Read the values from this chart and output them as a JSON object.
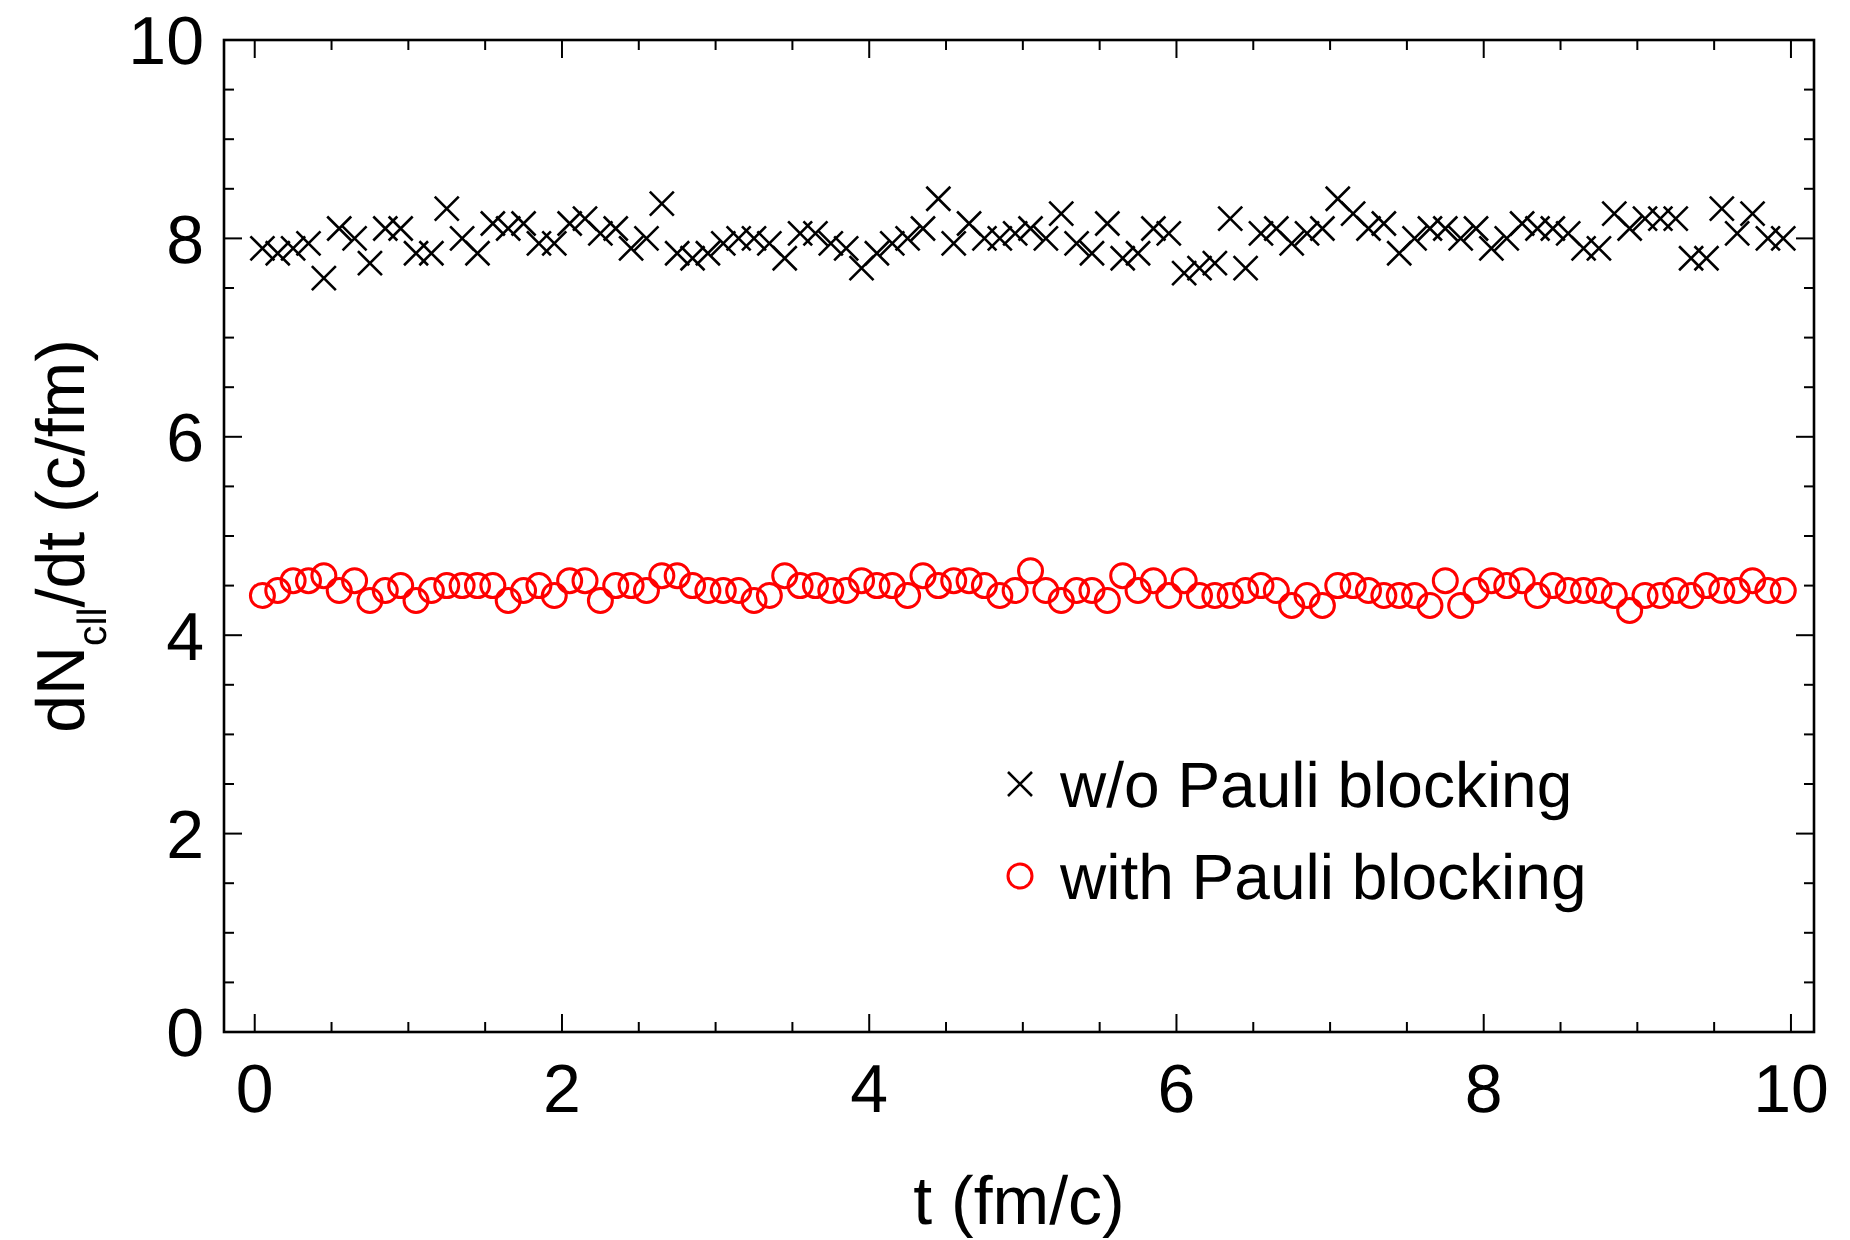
{
  "chart_data": {
    "type": "scatter",
    "xlabel": "t (fm/c)",
    "ylabel": "dN$_{cll}$/dt (c/fm)",
    "x": [
      0.05,
      0.15,
      0.25,
      0.35,
      0.45,
      0.55,
      0.65,
      0.75,
      0.85,
      0.95,
      1.05,
      1.15,
      1.25,
      1.35,
      1.45,
      1.55,
      1.65,
      1.75,
      1.85,
      1.95,
      2.05,
      2.15,
      2.25,
      2.35,
      2.45,
      2.55,
      2.65,
      2.75,
      2.85,
      2.95,
      3.05,
      3.15,
      3.25,
      3.35,
      3.45,
      3.55,
      3.65,
      3.75,
      3.85,
      3.95,
      4.05,
      4.15,
      4.25,
      4.35,
      4.45,
      4.55,
      4.65,
      4.75,
      4.85,
      4.95,
      5.05,
      5.15,
      5.25,
      5.35,
      5.45,
      5.55,
      5.65,
      5.75,
      5.85,
      5.95,
      6.05,
      6.15,
      6.25,
      6.35,
      6.45,
      6.55,
      6.65,
      6.75,
      6.85,
      6.95,
      7.05,
      7.15,
      7.25,
      7.35,
      7.45,
      7.55,
      7.65,
      7.75,
      7.85,
      7.95,
      8.05,
      8.15,
      8.25,
      8.35,
      8.45,
      8.55,
      8.65,
      8.75,
      8.85,
      8.95,
      9.05,
      9.15,
      9.25,
      9.35,
      9.45,
      9.55,
      9.65,
      9.75,
      9.85,
      9.95
    ],
    "series": [
      {
        "name": "w/o Pauli blocking",
        "color": "#000000",
        "marker": "cross",
        "values": [
          7.9,
          7.85,
          7.9,
          7.95,
          7.6,
          8.1,
          8.0,
          7.75,
          8.1,
          8.1,
          7.85,
          7.85,
          8.3,
          8.0,
          7.85,
          8.15,
          8.1,
          8.15,
          7.95,
          7.95,
          8.15,
          8.2,
          8.05,
          8.1,
          7.9,
          8.0,
          8.35,
          7.85,
          7.8,
          7.85,
          7.95,
          8.0,
          8.0,
          7.95,
          7.8,
          8.05,
          8.05,
          7.95,
          7.9,
          7.7,
          7.85,
          7.95,
          8.0,
          8.1,
          8.4,
          7.95,
          8.15,
          8.0,
          8.0,
          8.05,
          8.1,
          8.0,
          8.25,
          7.95,
          7.85,
          8.15,
          7.8,
          7.85,
          8.1,
          8.05,
          7.65,
          7.7,
          7.75,
          8.2,
          7.7,
          8.05,
          8.1,
          7.95,
          8.05,
          8.1,
          8.4,
          8.25,
          8.1,
          8.15,
          7.85,
          8.0,
          8.1,
          8.1,
          8.0,
          8.1,
          7.9,
          8.0,
          8.15,
          8.1,
          8.1,
          8.05,
          7.9,
          7.9,
          8.25,
          8.1,
          8.2,
          8.2,
          8.2,
          7.8,
          7.8,
          8.3,
          8.05,
          8.25,
          8.0,
          8.0
        ]
      },
      {
        "name": "with Pauli blocking",
        "color": "#ff0000",
        "marker": "circle",
        "values": [
          4.4,
          4.45,
          4.55,
          4.55,
          4.6,
          4.45,
          4.55,
          4.35,
          4.45,
          4.5,
          4.35,
          4.45,
          4.5,
          4.5,
          4.5,
          4.5,
          4.35,
          4.45,
          4.5,
          4.4,
          4.55,
          4.55,
          4.35,
          4.5,
          4.5,
          4.45,
          4.6,
          4.6,
          4.5,
          4.45,
          4.45,
          4.45,
          4.35,
          4.4,
          4.6,
          4.5,
          4.5,
          4.45,
          4.45,
          4.55,
          4.5,
          4.5,
          4.4,
          4.6,
          4.5,
          4.55,
          4.55,
          4.5,
          4.4,
          4.45,
          4.65,
          4.45,
          4.35,
          4.45,
          4.45,
          4.35,
          4.6,
          4.45,
          4.55,
          4.4,
          4.55,
          4.4,
          4.4,
          4.4,
          4.45,
          4.5,
          4.45,
          4.3,
          4.4,
          4.3,
          4.5,
          4.5,
          4.45,
          4.4,
          4.4,
          4.4,
          4.3,
          4.55,
          4.3,
          4.45,
          4.55,
          4.5,
          4.55,
          4.4,
          4.5,
          4.45,
          4.45,
          4.45,
          4.4,
          4.25,
          4.4,
          4.4,
          4.45,
          4.4,
          4.5,
          4.45,
          4.45,
          4.55,
          4.45,
          4.45
        ]
      }
    ],
    "xlim": [
      -0.2,
      10.15
    ],
    "ylim": [
      0,
      10
    ],
    "xticks": [
      0,
      {
        "value": 0.5,
        "label": null
      },
      {
        "value": 1,
        "label": null
      },
      {
        "value": 1.5,
        "label": null
      },
      2,
      {
        "value": 2.5,
        "label": null
      },
      {
        "value": 3,
        "label": null
      },
      {
        "value": 3.5,
        "label": null
      },
      4,
      {
        "value": 4.5,
        "label": null
      },
      {
        "value": 5,
        "label": null
      },
      {
        "value": 5.5,
        "label": null
      },
      6,
      {
        "value": 6.5,
        "label": null
      },
      {
        "value": 7,
        "label": null
      },
      {
        "value": 7.5,
        "label": null
      },
      8,
      {
        "value": 8.5,
        "label": null
      },
      {
        "value": 9,
        "label": null
      },
      {
        "value": 9.5,
        "label": null
      },
      10
    ],
    "yticks": [
      0,
      {
        "value": 0.5,
        "label": null
      },
      {
        "value": 1,
        "label": null
      },
      {
        "value": 1.5,
        "label": null
      },
      2,
      {
        "value": 2.5,
        "label": null
      },
      {
        "value": 3,
        "label": null
      },
      {
        "value": 3.5,
        "label": null
      },
      4,
      {
        "value": 4.5,
        "label": null
      },
      {
        "value": 5,
        "label": null
      },
      {
        "value": 5.5,
        "label": null
      },
      6,
      {
        "value": 6.5,
        "label": null
      },
      {
        "value": 7,
        "label": null
      },
      {
        "value": 7.5,
        "label": null
      },
      8,
      {
        "value": 8.5,
        "label": null
      },
      {
        "value": 9,
        "label": null
      },
      {
        "value": 9.5,
        "label": null
      },
      10
    ],
    "grid": false,
    "legend": "bottom right"
  }
}
